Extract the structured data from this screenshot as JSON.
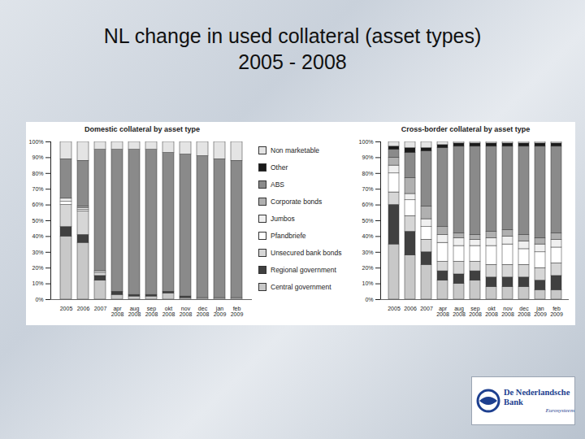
{
  "slide": {
    "title": [
      "NL change in used collateral (asset types)",
      "2005 - 2008"
    ],
    "logo": {
      "text": "De Nederlandsche Bank",
      "subtext": "Eurosysteem"
    }
  },
  "chart_data": [
    {
      "type": "bar",
      "stacked": true,
      "grid": false,
      "legend": "right",
      "title": "Domestic collateral by asset type",
      "categories": [
        "2005",
        "2006",
        "2007",
        "apr 2008",
        "aug 2008",
        "sep 2008",
        "okt 2008",
        "nov 2008",
        "dec 2008",
        "jan 2009",
        "feb 2009"
      ],
      "ylim": [
        0,
        100
      ],
      "yticks": [
        {
          "value": 0,
          "label": "0%"
        },
        {
          "value": 10,
          "label": "10%"
        },
        {
          "value": 20,
          "label": "20%"
        },
        {
          "value": 30,
          "label": "30%"
        },
        {
          "value": 40,
          "label": "40%"
        },
        {
          "value": 50,
          "label": "50%"
        },
        {
          "value": 60,
          "label": "60%"
        },
        {
          "value": 70,
          "label": "70%"
        },
        {
          "value": 80,
          "label": "80%"
        },
        {
          "value": 90,
          "label": "90%"
        },
        {
          "value": 100,
          "label": "100%"
        }
      ],
      "series": [
        {
          "name": "Central government",
          "color": "#c8c8c8",
          "values": [
            40,
            36,
            12,
            3,
            2,
            2,
            4,
            1,
            1,
            1,
            1
          ]
        },
        {
          "name": "Regional government",
          "color": "#404040",
          "values": [
            6,
            5,
            3,
            2,
            1,
            1,
            1,
            1,
            0,
            0,
            0
          ]
        },
        {
          "name": "Unsecured bank bonds",
          "color": "#d6d6d6",
          "values": [
            14,
            15,
            2,
            0,
            0,
            0,
            0,
            0,
            0,
            0,
            0
          ]
        },
        {
          "name": "Pfandbriefe",
          "color": "#ffffff",
          "values": [
            2,
            1,
            1,
            0,
            0,
            0,
            0,
            0,
            0,
            0,
            0
          ]
        },
        {
          "name": "Jumbos",
          "color": "#f0f0f0",
          "values": [
            2,
            1,
            0,
            0,
            0,
            0,
            0,
            0,
            0,
            0,
            0
          ]
        },
        {
          "name": "Corporate bonds",
          "color": "#b0b0b0",
          "values": [
            0,
            1,
            0,
            0,
            0,
            0,
            0,
            0,
            0,
            0,
            0
          ]
        },
        {
          "name": "ABS",
          "color": "#8a8a8a",
          "values": [
            25,
            29,
            77,
            90,
            92,
            92,
            88,
            90,
            90,
            88,
            87
          ]
        },
        {
          "name": "Other",
          "color": "#1a1a1a",
          "values": [
            0,
            0,
            0,
            0,
            0,
            0,
            0,
            0,
            0,
            0,
            0
          ]
        },
        {
          "name": "Non marketable",
          "color": "#e4e4e4",
          "values": [
            11,
            12,
            5,
            5,
            5,
            5,
            7,
            8,
            9,
            11,
            12
          ]
        }
      ]
    },
    {
      "type": "bar",
      "stacked": true,
      "grid": false,
      "title": "Cross-border collateral by asset type",
      "categories": [
        "2005",
        "2006",
        "2007",
        "apr 2008",
        "aug 2008",
        "sep 2008",
        "okt 2008",
        "nov 2008",
        "dec 2008",
        "jan 2009",
        "feb 2009"
      ],
      "ylim": [
        0,
        100
      ],
      "yticks": [
        {
          "value": 0,
          "label": "0%"
        },
        {
          "value": 10,
          "label": "10%"
        },
        {
          "value": 20,
          "label": "20%"
        },
        {
          "value": 30,
          "label": "30%"
        },
        {
          "value": 40,
          "label": "40%"
        },
        {
          "value": 50,
          "label": "50%"
        },
        {
          "value": 60,
          "label": "60%"
        },
        {
          "value": 70,
          "label": "70%"
        },
        {
          "value": 80,
          "label": "80%"
        },
        {
          "value": 90,
          "label": "90%"
        },
        {
          "value": 100,
          "label": "100%"
        }
      ],
      "series": [
        {
          "name": "Central government",
          "color": "#c8c8c8",
          "values": [
            35,
            28,
            22,
            12,
            10,
            12,
            8,
            8,
            8,
            6,
            6
          ]
        },
        {
          "name": "Regional government",
          "color": "#404040",
          "values": [
            25,
            15,
            8,
            6,
            6,
            6,
            6,
            6,
            6,
            6,
            9
          ]
        },
        {
          "name": "Unsecured bank bonds",
          "color": "#d6d6d6",
          "values": [
            8,
            10,
            8,
            6,
            8,
            6,
            8,
            8,
            8,
            8,
            8
          ]
        },
        {
          "name": "Pfandbriefe",
          "color": "#ffffff",
          "values": [
            12,
            10,
            8,
            12,
            10,
            10,
            12,
            13,
            10,
            10,
            10
          ]
        },
        {
          "name": "Jumbos",
          "color": "#f0f0f0",
          "values": [
            5,
            4,
            5,
            5,
            5,
            4,
            5,
            5,
            5,
            5,
            5
          ]
        },
        {
          "name": "Corporate bonds",
          "color": "#b0b0b0",
          "values": [
            5,
            10,
            8,
            5,
            3,
            3,
            4,
            4,
            4,
            4,
            4
          ]
        },
        {
          "name": "ABS",
          "color": "#8a8a8a",
          "values": [
            5,
            16,
            35,
            50,
            55,
            56,
            54,
            53,
            56,
            58,
            55
          ]
        },
        {
          "name": "Other",
          "color": "#1a1a1a",
          "values": [
            2,
            3,
            2,
            2,
            2,
            2,
            2,
            2,
            2,
            2,
            2
          ]
        },
        {
          "name": "Non marketable",
          "color": "#e4e4e4",
          "values": [
            3,
            4,
            4,
            2,
            1,
            1,
            1,
            1,
            1,
            1,
            1
          ]
        }
      ]
    }
  ]
}
